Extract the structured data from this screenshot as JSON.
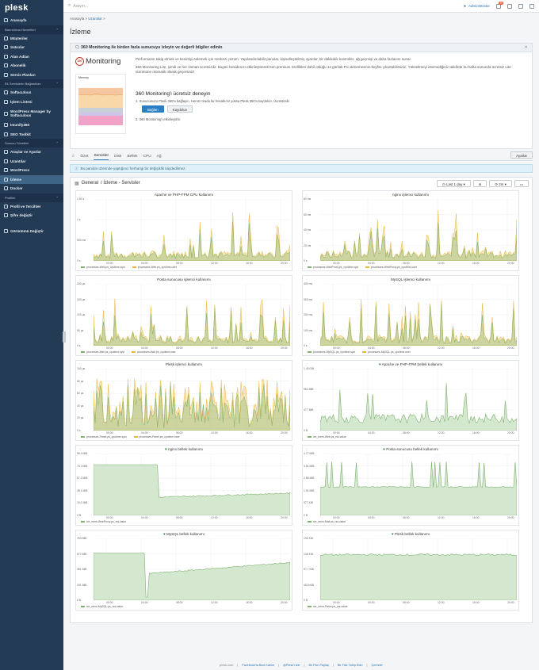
{
  "app": {
    "logo": "plesk"
  },
  "sidebar": {
    "group1": [
      {
        "label": "Anasayfa",
        "active": false
      }
    ],
    "sections": [
      {
        "title": "Barındırma Hizmetleri",
        "items": [
          "Müşteriler",
          "Satıcılar",
          "Alan Adları",
          "Abonelik",
          "Servis Planları"
        ]
      },
      {
        "title": "Ek Servislerin Bağlantıları",
        "items": [
          "Softaculous",
          "İşlem Listesi",
          "WordPress Manager by Softaculous",
          "Imunify360",
          "SEO Toolkit"
        ]
      },
      {
        "title": "Sunucu Yönetimi",
        "items": [
          "Araçlar ve Ayarlar",
          "Uzantılar",
          "WordPress",
          "İzleme",
          "Docker"
        ]
      },
      {
        "title": "Profilim",
        "items": [
          "Profil ve Tercihler",
          "Şifre değiştir"
        ]
      }
    ],
    "view_switch": "Görünümü Değiştir",
    "active_item": "İzleme"
  },
  "topbar": {
    "search_placeholder": "Arayın...",
    "user": "Administrator",
    "notif_count": "99"
  },
  "breadcrumb": [
    "Anasayfa",
    "Uzantılar"
  ],
  "page_title": "İzleme",
  "promo": {
    "title": "360 Monitoring ile birden fazla sunucuyu izleyin ve değerli bilgiler edinin",
    "logo_text": "Monitoring",
    "logo_circle": "360",
    "mem_label": "Memory",
    "p1": "Performansı takip etmek ve kesintiyi önlemek için merkezi çözüm. Yapılandırılabilir panolar, kişiselleştirilmiş uyarılar, bir dakikalık kontroller, ağ geçmişi ve daha fazlasını sunar.",
    "p2": "360 Monitoring Lite, şimdi ve her zaman ücretsizdir. Bugün hesabınızı etkinleştirerek tüm premium özellikleri dahil olduğu 14 günlük Pro denemesinin keyfini çıkartabilirsiniz. Yükseltmeyi istemediğiniz takdirde bu hafta sonunda ücretsiz Lite sürümüne otomatik olarak geçersiniz!",
    "try_title": "360 Monitoring'i ücretsiz deneyin",
    "step1": "1.  Sunucunuzu Plesk 360'a bağlayın. Henüz orada bir hesabınız yoksa Plesk 360'a kaydolun. Ücretsizdir.",
    "connect_btn": "Bağlan",
    "register_btn": "Kaydolun",
    "step2": "2.  360 Monitoring'i etkinleştirin."
  },
  "tabs": [
    "Özet",
    "Servisler",
    "Disk",
    "Bellek",
    "CPU",
    "Ağ"
  ],
  "active_tab": "Servisler",
  "settings_btn": "Ayarlar",
  "info_msg": "Bu panolar üzerinde yaptığınız herhangi bir değişiklik kaydedilmez.",
  "dashboard": {
    "title_a": "General",
    "title_b": "/ İzleme - Servisler",
    "range": "Last 1 day",
    "refresh": "2m"
  },
  "times": [
    "00:00",
    "04:00",
    "08:00",
    "12:00",
    "16:00",
    "20:00"
  ],
  "charts": [
    {
      "title": "Apache ve PHP-FPM CPU kullanımı",
      "yticks": [
        "1.50 s",
        "1 s",
        "500 ms",
        "0 s"
      ],
      "legend": [
        "processes-Web.ps_cputime.syst",
        "processes-Web.ps_cputime.user"
      ],
      "heart": false
    },
    {
      "title": "nginx işlemci kullanımı",
      "yticks": [
        "80 ms",
        "60 ms",
        "40 ms",
        "20 ms",
        "0 s"
      ],
      "legend": [
        "processes-WebProxy.ps_cputime.syst",
        "processes-WebProxy.ps_cputime.user"
      ],
      "heart": false
    },
    {
      "title": "Posta sunucusu işlemci kullanımı",
      "yticks": [
        "200 µs",
        "150 µs",
        "100 µs",
        "50 µs",
        "0 s"
      ],
      "legend": [
        "processes-Mail.ps_cputime.syst",
        "processes-Mail.ps_cputime.user"
      ],
      "heart": false
    },
    {
      "title": "MySQL işlemci kullanımı",
      "yticks": [
        "400 ms",
        "300 ms",
        "200 ms",
        "100 ms",
        "0 s"
      ],
      "legend": [
        "processes-MySQL.ps_cputime.syst",
        "processes-MySQL.ps_cputime.user"
      ],
      "heart": false
    },
    {
      "title": "Plesk işlemci kullanımı",
      "yticks": [
        "100 µs",
        "80 µs",
        "60 µs",
        "40 µs",
        "20 µs",
        "0 s"
      ],
      "legend": [
        "processes-Panel.ps_cputime.syst",
        "processes-Panel.ps_cputime.user"
      ],
      "heart": false
    },
    {
      "title": "Apache ve PHP-FPM bellek kullanımı",
      "yticks": [
        "1.40 GiB",
        "954 MiB",
        "477 MiB",
        "0 B"
      ],
      "legend": [
        "ive_mem-Web.ps_rss.value"
      ],
      "heart": true
    },
    {
      "title": "nginx bellek kullanımı",
      "yticks": [
        "95.4 MiB",
        "76.3 MiB",
        "57.2 MiB",
        "38.1 MiB",
        "19.1 MiB",
        "0 B"
      ],
      "legend": [
        "ive_mem-WebProxy.ps_rss.value"
      ],
      "heart": true
    },
    {
      "title": "Posta sunucusu bellek kullanımı",
      "yticks": [
        "4.77 MiB",
        "3.81 MiB",
        "2.86 MiB",
        "1.91 MiB",
        "977 KiB",
        "0 B"
      ],
      "legend": [
        "ive_mem-Mail.ps_rss.value"
      ],
      "heart": true
    },
    {
      "title": "MySQL bellek kullanımı",
      "yticks": [
        "763 MiB",
        "572 MiB",
        "381 MiB",
        "191 MiB",
        "0 B"
      ],
      "legend": [
        "ive_mem-MySQL.ps_rss.value"
      ],
      "heart": true
    },
    {
      "title": "Plesk bellek kullanımı",
      "yticks": [
        "195 KiB",
        "146 KiB",
        "97.7 KiB",
        "48.8 KiB",
        "0 B"
      ],
      "legend": [
        "ive_mem-Panel.ps_rss.value"
      ],
      "heart": true
    }
  ],
  "colors": {
    "syst": "#7eb26d",
    "user": "#eab839",
    "accent": "#2a7fc4",
    "sidebar": "#243b55"
  },
  "footer": [
    "plesk.com",
    "Facebook'ta Bize Katılın",
    "@Plesk'i izle",
    "Bir Fikri Paylaş",
    "Bir Fikir Talep Edin",
    "Çerezler"
  ]
}
